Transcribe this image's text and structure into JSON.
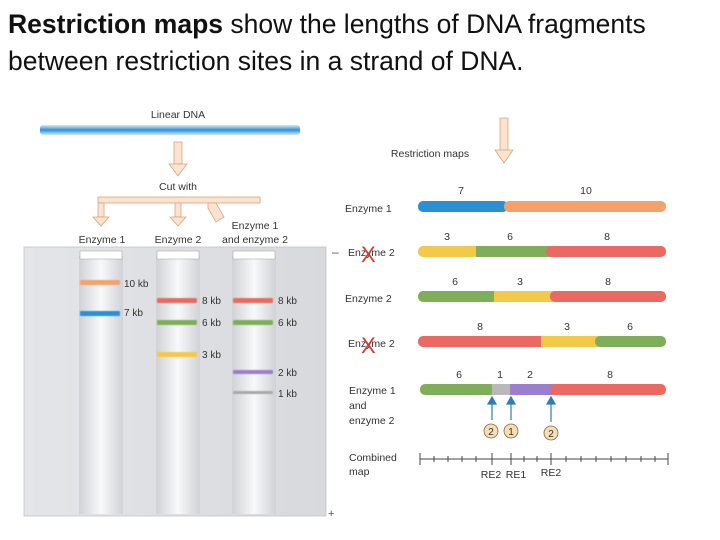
{
  "heading": {
    "bold": "Restriction maps",
    "rest": " show the lengths of DNA fragments between restriction sites in a strand of DNA."
  },
  "diagram": {
    "linear_dna_label": "Linear DNA",
    "restriction_maps_label": "Restriction maps",
    "cut_with_label": "Cut with",
    "lanes": [
      "Enzyme 1",
      "Enzyme 2",
      "Enzyme 1 and enzyme 2"
    ],
    "lane3_line1": "Enzyme 1",
    "lane3_line2": "and enzyme 2",
    "gel_minus": "–",
    "gel_plus": "+",
    "band_labels": {
      "e1_10kb": "10 kb",
      "e1_7kb": "7 kb",
      "e2_8kb": "8 kb",
      "e2_6kb": "6 kb",
      "e2_3kb": "3 kb",
      "both_8kb": "8 kb",
      "both_6kb": "6 kb",
      "both_2kb": "2 kb",
      "both_1kb": "1 kb"
    },
    "maps": [
      {
        "label": "Enzyme 1",
        "nums": [
          "7",
          "10"
        ]
      },
      {
        "label": "Enzyme 2",
        "nums": [
          "3",
          "6",
          "8"
        ],
        "crossed": true
      },
      {
        "label": "Enzyme 2",
        "nums": [
          "6",
          "3",
          "8"
        ]
      },
      {
        "label": "Enzyme 2",
        "nums": [
          "8",
          "3",
          "6"
        ],
        "crossed": true
      },
      {
        "label": "Enzyme 1 and enzyme 2",
        "nums": [
          "6",
          "1",
          "2",
          "8"
        ]
      }
    ],
    "map5_line1": "Enzyme 1",
    "map5_line2": "and",
    "map5_line3": "enzyme 2",
    "cross_mark": "X",
    "site_circles": [
      "2",
      "1",
      "2"
    ],
    "combined_label_1": "Combined",
    "combined_label_2": "map",
    "combined_sites": [
      "RE2",
      "RE1",
      "RE2"
    ],
    "colors": {
      "blue": "#2b8fd4",
      "orange": "#f2a26a",
      "green": "#7fae5a",
      "yellow": "#f3c94a",
      "red": "#ea6a61",
      "purple": "#9a7fcf",
      "cross": "#d9392b",
      "arrow": "#2a7fb8"
    }
  }
}
